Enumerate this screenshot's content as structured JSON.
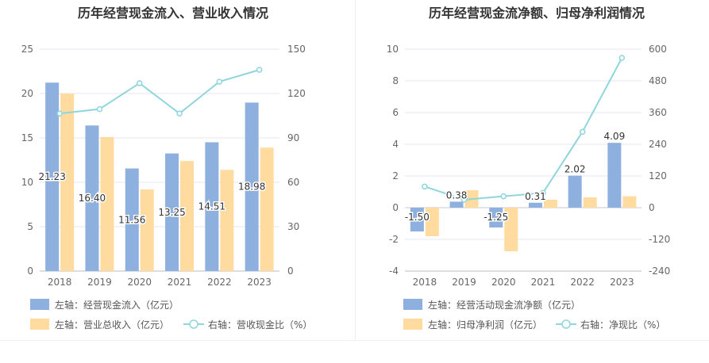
{
  "chart_data": [
    {
      "type": "bar",
      "title": "历年经营现金流入、营业收入情况",
      "categories": [
        "2018",
        "2019",
        "2020",
        "2021",
        "2022",
        "2023"
      ],
      "ylim_left": [
        0,
        25
      ],
      "yticks_left": [
        "0",
        "5",
        "10",
        "15",
        "20",
        "25"
      ],
      "ylim_right": [
        0,
        150
      ],
      "yticks_right": [
        "0",
        "30",
        "60",
        "90",
        "120",
        "150"
      ],
      "series": [
        {
          "name": "左轴：经营现金流入（亿元）",
          "axis": "left",
          "kind": "bar",
          "color": "#8eb0de",
          "values": [
            21.23,
            16.4,
            11.56,
            13.25,
            14.51,
            18.98
          ],
          "labels": [
            "21.23",
            "16.40",
            "11.56",
            "13.25",
            "14.51",
            "18.98"
          ]
        },
        {
          "name": "左轴：营业总收入（亿元）",
          "axis": "left",
          "kind": "bar",
          "color": "#ffdba0",
          "values": [
            20.0,
            15.1,
            9.2,
            12.4,
            11.4,
            13.9
          ]
        },
        {
          "name": "右轴：营收现金比（%）",
          "axis": "right",
          "kind": "line",
          "color": "#8fd6dc",
          "values": [
            106.5,
            109.5,
            127,
            106.5,
            128,
            136
          ]
        }
      ],
      "grid": true,
      "legend_position": "bottom"
    },
    {
      "type": "bar",
      "title": "历年经营现金流净额、归母净利润情况",
      "categories": [
        "2018",
        "2019",
        "2020",
        "2021",
        "2022",
        "2023"
      ],
      "ylim_left": [
        -4,
        10
      ],
      "yticks_left": [
        "-4",
        "-2",
        "0",
        "2",
        "4",
        "6",
        "8",
        "10"
      ],
      "ylim_right": [
        -240,
        600
      ],
      "yticks_right": [
        "-240",
        "-120",
        "0",
        "120",
        "240",
        "360",
        "480",
        "600"
      ],
      "series": [
        {
          "name": "左轴：经营活动现金流净额（亿元）",
          "axis": "left",
          "kind": "bar",
          "color": "#8eb0de",
          "values": [
            -1.5,
            0.38,
            -1.25,
            0.31,
            2.02,
            4.09
          ],
          "labels": [
            "-1.50",
            "0.38",
            "-1.25",
            "0.31",
            "2.02",
            "4.09"
          ]
        },
        {
          "name": "左轴：归母净利润（亿元）",
          "axis": "left",
          "kind": "bar",
          "color": "#ffdba0",
          "values": [
            -1.8,
            1.1,
            -2.75,
            0.5,
            0.65,
            0.72
          ]
        },
        {
          "name": "右轴：净现比（%）",
          "axis": "right",
          "kind": "line",
          "color": "#8fd6dc",
          "values": [
            80,
            30,
            43,
            56,
            287,
            567
          ]
        }
      ],
      "grid": true,
      "legend_position": "bottom"
    }
  ]
}
